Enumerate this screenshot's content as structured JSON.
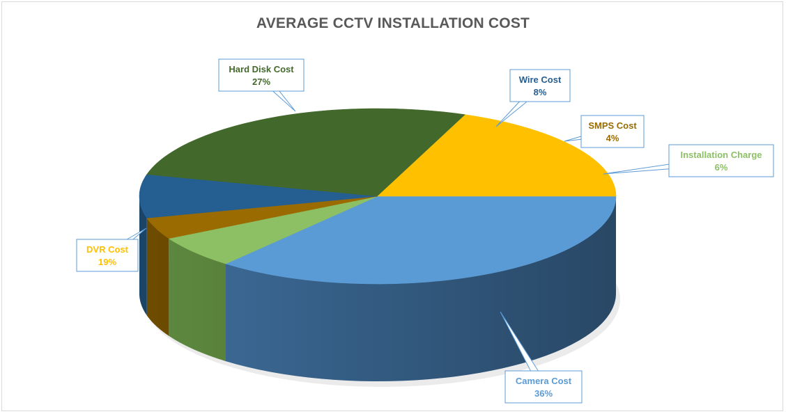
{
  "chart_data": {
    "type": "pie",
    "title": "AVERAGE CCTV INSTALLATION COST",
    "slices": [
      {
        "label": "Camera Cost",
        "value": 36,
        "value_label": "36%",
        "color": "#5b9bd5",
        "side": "#3e6e9c"
      },
      {
        "label": "Installation Charge",
        "value": 6,
        "value_label": "6%",
        "color": "#8dc065",
        "side": "#5f8a3f"
      },
      {
        "label": "SMPS Cost",
        "value": 4,
        "value_label": "4%",
        "color": "#9a6b00",
        "side": "#6e4c00"
      },
      {
        "label": "Wire Cost",
        "value": 8,
        "value_label": "8%",
        "color": "#255e91",
        "side": "#1a4468"
      },
      {
        "label": "Hard Disk Cost",
        "value": 27,
        "value_label": "27%",
        "color": "#43682b",
        "side": "#2f4a1e"
      },
      {
        "label": "DVR Cost",
        "value": 19,
        "value_label": "19%",
        "color": "#ffc000",
        "side": "#c99400"
      }
    ],
    "label_text_colors": {
      "Camera Cost": "#5b9bd5",
      "Installation Charge": "#8dc065",
      "SMPS Cost": "#9a6b00",
      "Wire Cost": "#255e91",
      "Hard Disk Cost": "#43682b",
      "DVR Cost": "#ffc000"
    },
    "legend": "none"
  }
}
